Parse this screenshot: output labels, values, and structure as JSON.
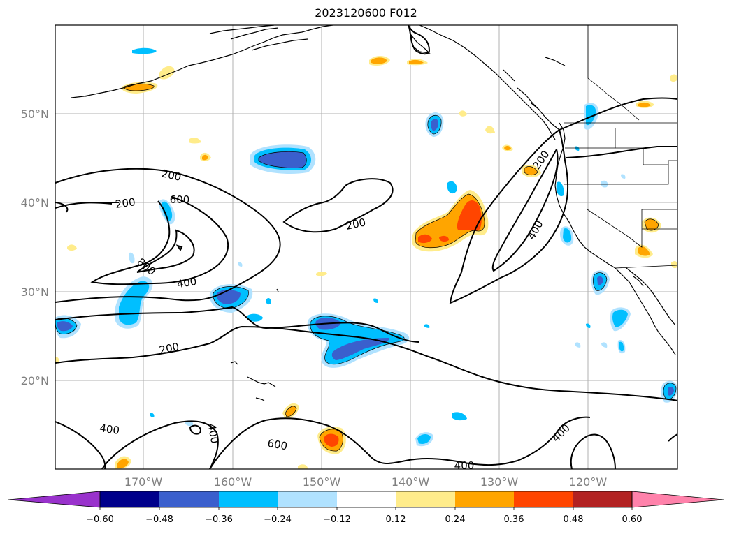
{
  "title": "2023120600 F012",
  "map": {
    "lat_labels": [
      "50°N",
      "40°N",
      "30°N",
      "20°N"
    ],
    "lon_labels": [
      "170°W",
      "160°W",
      "150°W",
      "140°W",
      "130°W",
      "120°W"
    ],
    "contour_labels": [
      "200",
      "200",
      "600",
      "800",
      "400",
      "200",
      "200",
      "200",
      "400",
      "400",
      "400",
      "600",
      "400",
      "400"
    ]
  },
  "colorbar": {
    "ticks": [
      "−0.60",
      "−0.48",
      "−0.36",
      "−0.24",
      "−0.12",
      "0.12",
      "0.24",
      "0.36",
      "0.48",
      "0.60"
    ],
    "colors": [
      "#9932cc",
      "#00008b",
      "#3a5fcd",
      "#00bfff",
      "#b0e2ff",
      "#ffffff",
      "#ffec8b",
      "#ffa500",
      "#ff4500",
      "#b22222",
      "#ff82ab"
    ]
  }
}
